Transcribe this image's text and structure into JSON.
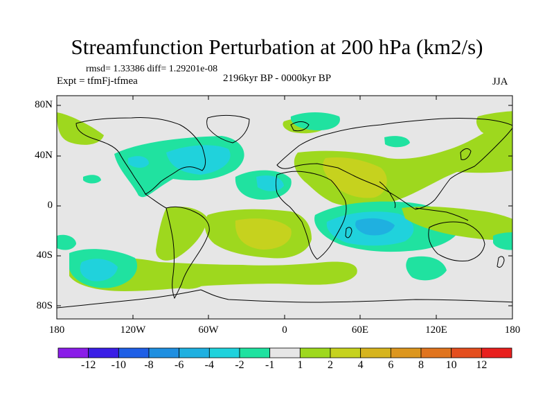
{
  "title": "Streamfunction Perturbation at 200 hPa (km2/s)",
  "stats": "rmsd= 1.33386 diff= 1.29201e-08",
  "experiment": "Expt = tfmFj-tfmea",
  "period": "2196kyr BP - 0000kyr BP",
  "season": "JJA",
  "lat_ticks": [
    "80N",
    "40N",
    "0",
    "40S",
    "80S"
  ],
  "lon_ticks": [
    "180",
    "120W",
    "60W",
    "0",
    "60E",
    "120E",
    "180"
  ],
  "colorbar": {
    "colors": [
      "#8a1de8",
      "#3a1ee6",
      "#1f5fe6",
      "#1f8fe0",
      "#1fb0e0",
      "#20d2dc",
      "#20e2a0",
      "#e6e6e6",
      "#9ed81e",
      "#c6d21e",
      "#d6b41e",
      "#dc961e",
      "#e0741e",
      "#e44e1e",
      "#e8201e"
    ],
    "labels": [
      "-12",
      "-10",
      "-8",
      "-6",
      "-4",
      "-2",
      "-1",
      "1",
      "2",
      "4",
      "6",
      "8",
      "10",
      "12"
    ]
  },
  "map_colors": {
    "background": "#e6e6e6",
    "weak_negative": "#20e2a0",
    "moderate_negative": "#20d2dc",
    "strong_negative": "#1fb0e0",
    "weak_positive": "#9ed81e",
    "moderate_positive": "#c6d21e",
    "strong_positive": "#d6b41e",
    "coast": "#000000"
  }
}
